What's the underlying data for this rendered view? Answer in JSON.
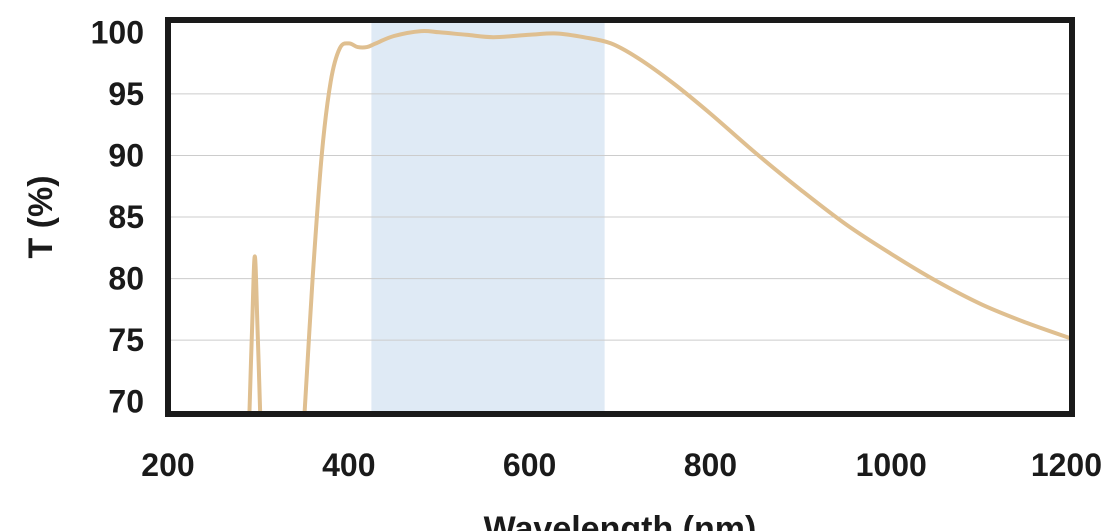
{
  "chart_data": {
    "type": "line",
    "xlabel": "Wavelength (nm)",
    "ylabel": "T (%)",
    "xlim": [
      200,
      1200
    ],
    "ylim": [
      69,
      101
    ],
    "x_ticks": [
      "200",
      "400",
      "600",
      "800",
      "1000",
      "1200"
    ],
    "y_ticks": [
      "70",
      "75",
      "80",
      "85",
      "90",
      "95",
      "100"
    ],
    "grid": "horizontal",
    "highlight_band": {
      "x_start": 425,
      "x_end": 683,
      "color": "#dfeaf5"
    },
    "colors": {
      "line": "#dfbf90",
      "frame": "#1a1a1a",
      "grid": "#cccccc"
    },
    "series": [
      {
        "segments": [
          [
            [
              290,
              69
            ],
            [
              293,
              76
            ],
            [
              296,
              81.8
            ],
            [
              299,
              76
            ],
            [
              302,
              69
            ]
          ],
          [
            [
              351,
              69
            ],
            [
              360,
              80
            ],
            [
              370,
              90
            ],
            [
              380,
              96
            ],
            [
              390,
              98.7
            ],
            [
              400,
              99.1
            ],
            [
              410,
              98.8
            ],
            [
              420,
              98.8
            ],
            [
              430,
              99.1
            ],
            [
              450,
              99.7
            ],
            [
              480,
              100.1
            ],
            [
              500,
              100
            ],
            [
              530,
              99.8
            ],
            [
              560,
              99.6
            ],
            [
              600,
              99.8
            ],
            [
              630,
              99.9
            ],
            [
              660,
              99.6
            ],
            [
              690,
              99.1
            ],
            [
              720,
              97.9
            ],
            [
              760,
              95.8
            ],
            [
              800,
              93.4
            ],
            [
              850,
              90.2
            ],
            [
              900,
              87.2
            ],
            [
              950,
              84.4
            ],
            [
              1000,
              82
            ],
            [
              1050,
              79.8
            ],
            [
              1100,
              77.9
            ],
            [
              1150,
              76.4
            ],
            [
              1200,
              75.1
            ]
          ]
        ]
      }
    ]
  }
}
